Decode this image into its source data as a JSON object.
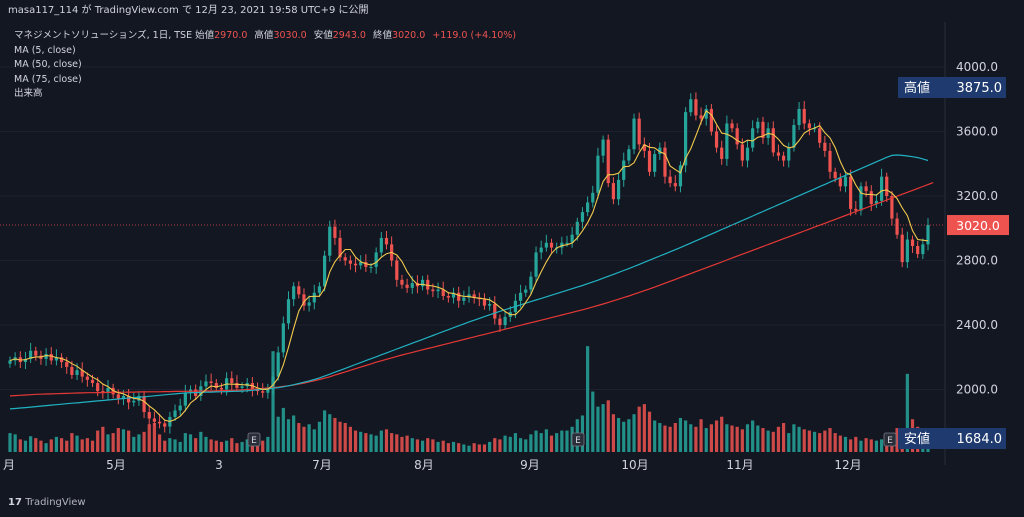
{
  "header": {
    "text": "masa117_114 が TradingView.com で 12月 23, 2021 19:58 UTC+9 に公開"
  },
  "legend": {
    "symbol": "マネジメントソリューションズ, 1日, TSE",
    "open_label": "始値",
    "open": "2970.0",
    "high_label": "高値",
    "high": "3030.0",
    "low_label": "安値",
    "low": "2943.0",
    "close_label": "終値",
    "close": "3020.0",
    "change": "+119.0 (+4.10%)",
    "ma1": "MA (5, close)",
    "ma2": "MA (50, close)",
    "ma3": "MA (75, close)",
    "volume": "出来高"
  },
  "footer": {
    "brand": "TradingView"
  },
  "colors": {
    "background": "#131722",
    "up": "#26a69a",
    "down": "#ef5350",
    "ma5": "#f2c94c",
    "ma50": "#20b2c2",
    "ma75": "#e53935",
    "label_box": "#1e3a6e"
  },
  "chart_data": {
    "type": "candlestick",
    "y_ticks": [
      "4000.0",
      "3600.0",
      "3200.0",
      "2800.0",
      "2400.0",
      "2000.0"
    ],
    "ylim": [
      1650,
      4200
    ],
    "x_ticks": [
      "月",
      "5月",
      "3",
      "7月",
      "8月",
      "9月",
      "10月",
      "11月",
      "12月"
    ],
    "earnings_markers": [
      "E",
      "E",
      "E"
    ],
    "high_label": "高値",
    "high_value": "3875.0",
    "low_label": "安値",
    "low_value": "1684.0",
    "last_value": "3020.0",
    "closes": [
      2180,
      2200,
      2170,
      2190,
      2240,
      2210,
      2190,
      2220,
      2180,
      2200,
      2170,
      2140,
      2090,
      2120,
      2080,
      2060,
      2040,
      1990,
      1980,
      2010,
      1970,
      1940,
      1960,
      1920,
      1930,
      1960,
      1860,
      1820,
      1800,
      1790,
      1770,
      1830,
      1870,
      1900,
      1980,
      2000,
      1960,
      2020,
      2050,
      2040,
      2010,
      2000,
      2070,
      2040,
      2010,
      2020,
      2040,
      2000,
      1990,
      1980,
      2010,
      2080,
      2230,
      2410,
      2560,
      2640,
      2590,
      2520,
      2540,
      2600,
      2640,
      2830,
      3010,
      2940,
      2820,
      2800,
      2780,
      2770,
      2790,
      2760,
      2760,
      2850,
      2940,
      2900,
      2800,
      2680,
      2650,
      2630,
      2660,
      2640,
      2680,
      2620,
      2610,
      2620,
      2580,
      2570,
      2600,
      2550,
      2570,
      2590,
      2570,
      2560,
      2520,
      2530,
      2440,
      2400,
      2450,
      2480,
      2550,
      2600,
      2620,
      2700,
      2850,
      2880,
      2910,
      2880,
      2880,
      2910,
      2910,
      2960,
      3040,
      3100,
      3160,
      3220,
      3450,
      3550,
      3280,
      3180,
      3300,
      3420,
      3490,
      3680,
      3520,
      3480,
      3350,
      3460,
      3500,
      3320,
      3280,
      3260,
      3390,
      3720,
      3800,
      3700,
      3680,
      3740,
      3600,
      3500,
      3430,
      3650,
      3620,
      3520,
      3420,
      3500,
      3620,
      3660,
      3560,
      3620,
      3470,
      3450,
      3420,
      3500,
      3640,
      3740,
      3650,
      3620,
      3620,
      3530,
      3480,
      3350,
      3310,
      3260,
      3320,
      3120,
      3110,
      3260,
      3230,
      3150,
      3170,
      3320,
      3200,
      3060,
      2960,
      2790,
      2930,
      2890,
      2840,
      2900,
      3020
    ],
    "volumes": [
      30,
      28,
      20,
      18,
      25,
      22,
      18,
      14,
      20,
      24,
      22,
      18,
      30,
      26,
      20,
      22,
      18,
      34,
      40,
      28,
      30,
      38,
      36,
      34,
      24,
      28,
      32,
      44,
      46,
      28,
      18,
      22,
      20,
      16,
      30,
      28,
      22,
      32,
      24,
      20,
      18,
      16,
      18,
      22,
      14,
      16,
      20,
      18,
      22,
      18,
      24,
      160,
      56,
      70,
      52,
      58,
      46,
      40,
      44,
      36,
      48,
      66,
      60,
      54,
      48,
      46,
      40,
      34,
      32,
      30,
      28,
      26,
      34,
      36,
      30,
      28,
      24,
      26,
      22,
      20,
      18,
      22,
      20,
      16,
      18,
      14,
      16,
      14,
      12,
      10,
      14,
      12,
      12,
      16,
      22,
      20,
      26,
      24,
      30,
      22,
      20,
      28,
      34,
      30,
      36,
      26,
      30,
      34,
      34,
      40,
      52,
      58,
      168,
      96,
      72,
      76,
      82,
      60,
      54,
      48,
      52,
      60,
      72,
      76,
      64,
      50,
      46,
      42,
      40,
      46,
      54,
      50,
      44,
      40,
      52,
      38,
      44,
      50,
      56,
      44,
      42,
      40,
      36,
      44,
      50,
      42,
      38,
      34,
      32,
      40,
      46,
      30,
      44,
      40,
      36,
      34,
      32,
      30,
      34,
      38,
      30,
      26,
      24,
      20,
      24,
      18,
      22,
      20,
      18,
      20,
      24,
      28,
      38,
      36,
      124,
      52,
      40,
      28,
      14
    ],
    "ma5": [
      2180,
      2190,
      2183,
      2185,
      2196,
      2202,
      2202,
      2210,
      2208,
      2198,
      2192,
      2180,
      2160,
      2144,
      2120,
      2098,
      2076,
      2060,
      2034,
      2018,
      1994,
      1980,
      1973,
      1958,
      1945,
      1942,
      1926,
      1898,
      1874,
      1842,
      1810,
      1802,
      1814,
      1834,
      1870,
      1916,
      1942,
      1972,
      2000,
      2022,
      2016,
      2024,
      2034,
      2033,
      2032,
      2030,
      2029,
      2023,
      2010,
      2000,
      2002,
      2028,
      2072,
      2152,
      2262,
      2380,
      2486,
      2544,
      2576,
      2578,
      2578,
      2626,
      2730,
      2792,
      2832,
      2868,
      2868,
      2822,
      2792,
      2780,
      2772,
      2788,
      2820,
      2842,
      2850,
      2834,
      2794,
      2732,
      2684,
      2652,
      2652,
      2646,
      2642,
      2634,
      2622,
      2600,
      2596,
      2584,
      2578,
      2576,
      2570,
      2566,
      2562,
      2556,
      2536,
      2510,
      2484,
      2464,
      2464,
      2496,
      2540,
      2590,
      2664,
      2730,
      2792,
      2844,
      2878,
      2892,
      2898,
      2908,
      2940,
      2984,
      3034,
      3098,
      3194,
      3290,
      3332,
      3332,
      3342,
      3382,
      3384,
      3406,
      3470,
      3518,
      3502,
      3498,
      3474,
      3462,
      3386,
      3364,
      3344,
      3434,
      3494,
      3574,
      3658,
      3728,
      3704,
      3644,
      3590,
      3584,
      3568,
      3544,
      3528,
      3546,
      3542,
      3564,
      3572,
      3588,
      3582,
      3552,
      3514,
      3498,
      3506,
      3544,
      3590,
      3610,
      3622,
      3636,
      3592,
      3560,
      3500,
      3414,
      3346,
      3332,
      3268,
      3218,
      3210,
      3210,
      3206,
      3232,
      3238,
      3218,
      3184,
      3126,
      3078,
      2986,
      2930,
      2926,
      2922
    ],
    "ma50": [
      1880,
      1882,
      1885,
      1888,
      1891,
      1894,
      1897,
      1900,
      1903,
      1906,
      1909,
      1912,
      1915,
      1917,
      1920,
      1923,
      1926,
      1929,
      1932,
      1935,
      1938,
      1941,
      1944,
      1947,
      1950,
      1953,
      1955,
      1958,
      1961,
      1964,
      1967,
      1970,
      1973,
      1976,
      1978,
      1980,
      1981,
      1982,
      1983,
      1984,
      1985,
      1986,
      1987,
      1988,
      1989,
      1990,
      1992,
      1995,
      1998,
      2001,
      2004,
      2008,
      2012,
      2017,
      2023,
      2030,
      2037,
      2045,
      2053,
      2062,
      2072,
      2083,
      2095,
      2107,
      2119,
      2131,
      2143,
      2155,
      2167,
      2179,
      2191,
      2203,
      2215,
      2227,
      2239,
      2251,
      2263,
      2275,
      2287,
      2299,
      2311,
      2323,
      2335,
      2347,
      2359,
      2371,
      2383,
      2395,
      2407,
      2419,
      2430,
      2441,
      2452,
      2463,
      2474,
      2485,
      2495,
      2505,
      2515,
      2525,
      2535,
      2545,
      2555,
      2565,
      2575,
      2585,
      2595,
      2605,
      2615,
      2625,
      2635,
      2645,
      2656,
      2667,
      2678,
      2690,
      2702,
      2714,
      2726,
      2738,
      2750,
      2763,
      2776,
      2789,
      2802,
      2815,
      2828,
      2841,
      2854,
      2867,
      2880,
      2894,
      2908,
      2922,
      2936,
      2950,
      2964,
      2978,
      2992,
      3006,
      3020,
      3034,
      3048,
      3062,
      3076,
      3090,
      3104,
      3118,
      3132,
      3146,
      3160,
      3174,
      3188,
      3202,
      3216,
      3230,
      3244,
      3258,
      3272,
      3286,
      3300,
      3314,
      3328,
      3342,
      3356,
      3370,
      3384,
      3398,
      3412,
      3426,
      3440,
      3452,
      3454,
      3452,
      3448,
      3444,
      3438,
      3430,
      3420
    ],
    "ma75": [
      1960,
      1962,
      1964,
      1966,
      1968,
      1970,
      1971,
      1972,
      1973,
      1974,
      1975,
      1976,
      1977,
      1978,
      1979,
      1980,
      1980,
      1981,
      1981,
      1982,
      1982,
      1983,
      1983,
      1984,
      1984,
      1985,
      1985,
      1986,
      1986,
      1986,
      1987,
      1987,
      1988,
      1988,
      1989,
      1989,
      1990,
      1990,
      1991,
      1991,
      1992,
      1993,
      1994,
      1995,
      1996,
      1998,
      2000,
      2002,
      2004,
      2006,
      2009,
      2012,
      2015,
      2019,
      2023,
      2028,
      2034,
      2040,
      2047,
      2054,
      2062,
      2070,
      2079,
      2089,
      2099,
      2109,
      2119,
      2129,
      2139,
      2149,
      2159,
      2169,
      2178,
      2187,
      2196,
      2205,
      2214,
      2222,
      2230,
      2238,
      2246,
      2254,
      2262,
      2270,
      2278,
      2286,
      2294,
      2302,
      2310,
      2318,
      2326,
      2334,
      2342,
      2350,
      2358,
      2366,
      2374,
      2382,
      2390,
      2398,
      2406,
      2414,
      2422,
      2430,
      2438,
      2446,
      2454,
      2462,
      2470,
      2478,
      2486,
      2494,
      2503,
      2512,
      2521,
      2530,
      2540,
      2550,
      2560,
      2570,
      2580,
      2591,
      2602,
      2613,
      2624,
      2635,
      2647,
      2659,
      2671,
      2683,
      2695,
      2707,
      2719,
      2731,
      2743,
      2755,
      2767,
      2779,
      2791,
      2803,
      2815,
      2827,
      2839,
      2851,
      2863,
      2875,
      2887,
      2899,
      2911,
      2923,
      2935,
      2947,
      2959,
      2971,
      2983,
      2995,
      3007,
      3019,
      3031,
      3043,
      3055,
      3067,
      3079,
      3091,
      3103,
      3115,
      3127,
      3139,
      3151,
      3163,
      3175,
      3187,
      3199,
      3211,
      3223,
      3235,
      3247,
      3259,
      3271,
      3283
    ]
  }
}
